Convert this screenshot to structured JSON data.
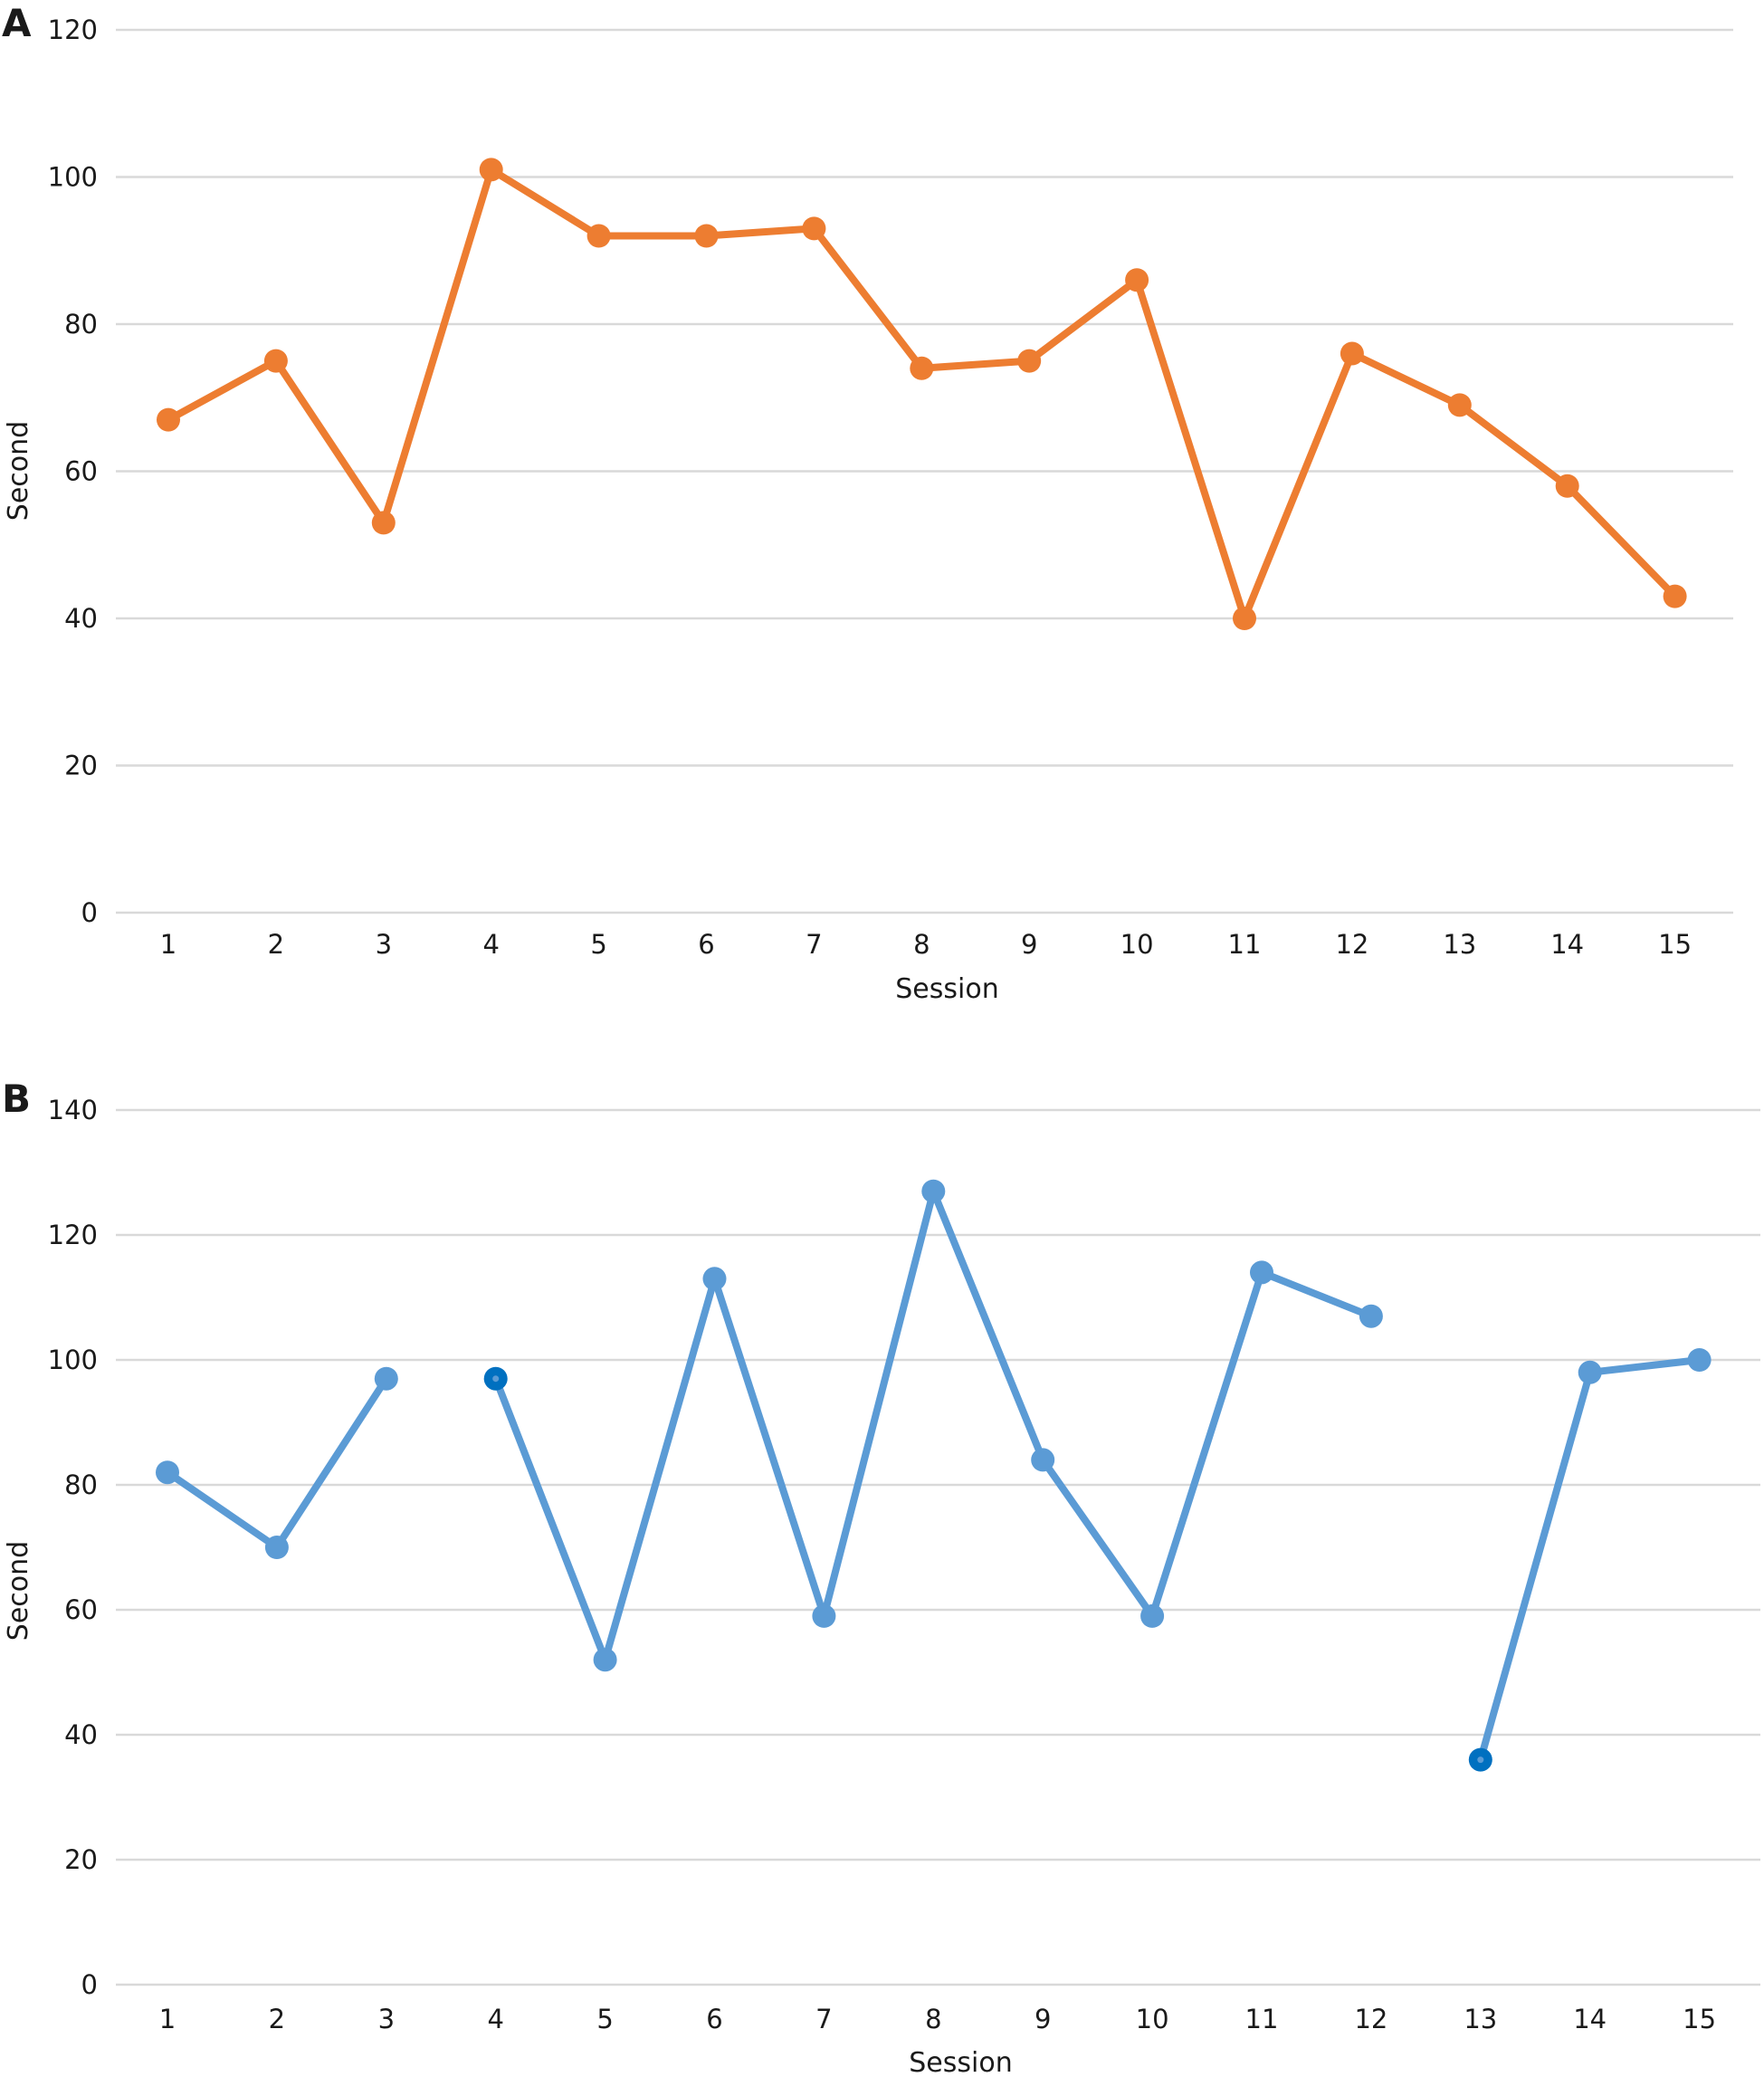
{
  "chart_data": [
    {
      "panel_label": "A",
      "type": "line",
      "xlabel": "Session",
      "ylabel": "Second",
      "ylim": [
        0,
        120
      ],
      "yticks": [
        0,
        20,
        40,
        60,
        80,
        100,
        120
      ],
      "categories": [
        "1",
        "2",
        "3",
        "4",
        "5",
        "6",
        "7",
        "8",
        "9",
        "10",
        "11",
        "12",
        "13",
        "14",
        "15"
      ],
      "color": "#ed7d31",
      "grid": true,
      "series": [
        {
          "values": [
            67,
            75,
            53,
            101,
            92,
            92,
            93,
            74,
            75,
            86,
            40,
            76,
            69,
            58,
            43
          ]
        }
      ]
    },
    {
      "panel_label": "B",
      "type": "line",
      "xlabel": "Session",
      "ylabel": "Second",
      "ylim": [
        0,
        140
      ],
      "yticks": [
        0,
        20,
        40,
        60,
        80,
        100,
        120,
        140
      ],
      "categories": [
        "1",
        "2",
        "3",
        "4",
        "5",
        "6",
        "7",
        "8",
        "9",
        "10",
        "11",
        "12",
        "13",
        "14",
        "15"
      ],
      "color": "#5b9bd5",
      "highlight_color": "#0070c0",
      "highlight_points": [
        3,
        12
      ],
      "line_breaks_after": [
        2,
        11
      ],
      "grid": true,
      "series": [
        {
          "values": [
            82,
            70,
            97,
            97,
            52,
            113,
            59,
            127,
            84,
            59,
            114,
            107,
            36,
            98,
            100
          ]
        }
      ]
    }
  ]
}
